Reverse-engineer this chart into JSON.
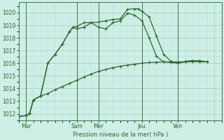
{
  "background_color": "#ceeee6",
  "grid_color_major": "#9ecfbf",
  "grid_color_minor": "#b8ddd4",
  "line_color": "#2d6a2d",
  "ylabel": "Pression niveau de la mer( hPa )",
  "ylim": [
    1011.5,
    1020.8
  ],
  "yticks": [
    1012,
    1013,
    1014,
    1015,
    1016,
    1017,
    1018,
    1019,
    1020
  ],
  "xlim": [
    0,
    56
  ],
  "xtick_positions": [
    2,
    16,
    22,
    34,
    44,
    54
  ],
  "xtick_labels": [
    "Mar",
    "Sam",
    "Mer",
    "Jeu",
    "Ven",
    ""
  ],
  "vline_positions": [
    2,
    16,
    22,
    34,
    44
  ],
  "s1_x": [
    0,
    2,
    3,
    4,
    6,
    8,
    10,
    12,
    14,
    16,
    18,
    20,
    22,
    24,
    26,
    28,
    30,
    32,
    34,
    36,
    38,
    40,
    42,
    44,
    46,
    48,
    50,
    52
  ],
  "s1_y": [
    1011.8,
    1011.85,
    1012.05,
    1013.1,
    1013.4,
    1013.6,
    1013.9,
    1014.15,
    1014.4,
    1014.65,
    1014.9,
    1015.15,
    1015.35,
    1015.5,
    1015.65,
    1015.75,
    1015.85,
    1015.92,
    1016.0,
    1016.05,
    1016.08,
    1016.1,
    1016.1,
    1016.1,
    1016.1,
    1016.12,
    1016.12,
    1016.1
  ],
  "s2_x": [
    0,
    2,
    3,
    4,
    6,
    8,
    10,
    12,
    14,
    15,
    16,
    18,
    20,
    22,
    24,
    26,
    28,
    30,
    32,
    34,
    36,
    38,
    40,
    42,
    44,
    46,
    48,
    50,
    52
  ],
  "s2_y": [
    1011.8,
    1011.85,
    1012.05,
    1013.1,
    1013.4,
    1016.0,
    1016.7,
    1017.5,
    1018.5,
    1018.85,
    1018.7,
    1018.85,
    1019.2,
    1018.85,
    1018.7,
    1019.2,
    1019.35,
    1019.95,
    1019.8,
    1019.35,
    1018.0,
    1016.55,
    1016.1,
    1016.05,
    1016.0,
    1016.15,
    1016.2,
    1016.15,
    1016.1
  ],
  "s3_x": [
    0,
    2,
    3,
    4,
    6,
    8,
    10,
    12,
    14,
    15,
    16,
    18,
    20,
    22,
    24,
    26,
    28,
    30,
    32,
    33,
    34,
    36,
    38,
    40,
    42,
    44,
    46,
    48,
    50,
    52
  ],
  "s3_y": [
    1011.8,
    1011.85,
    1012.05,
    1013.1,
    1013.4,
    1016.0,
    1016.7,
    1017.5,
    1018.5,
    1018.85,
    1018.9,
    1019.2,
    1019.2,
    1019.25,
    1019.35,
    1019.45,
    1019.5,
    1020.25,
    1020.3,
    1020.3,
    1020.1,
    1019.65,
    1018.15,
    1016.7,
    1016.15,
    1016.0,
    1016.1,
    1016.2,
    1016.2,
    1016.1
  ]
}
